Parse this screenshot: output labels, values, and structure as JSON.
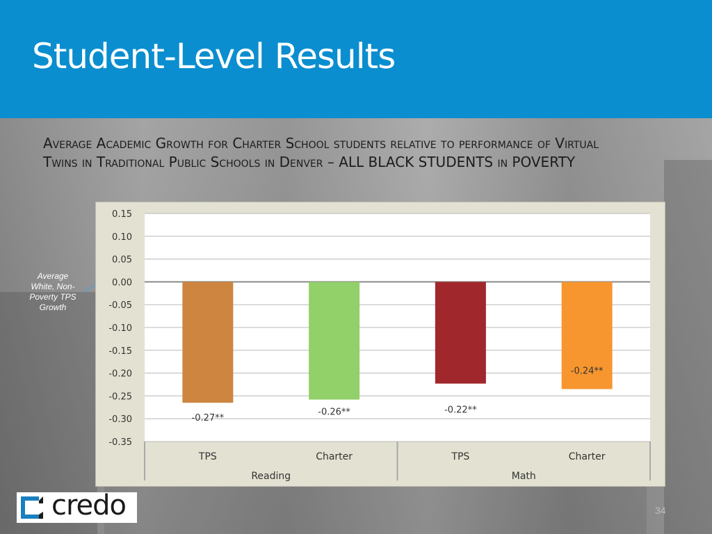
{
  "slide": {
    "title": "Student-Level Results",
    "subtitle": "Average Academic Growth for Charter School students relative to performance of Virtual Twins in Traditional Public Schools in Denver – ALL BLACK STUDENTS in POVERTY",
    "annotation": "Average White, Non-Poverty TPS Growth",
    "page_number": "34"
  },
  "logo": {
    "text": "credo"
  },
  "colors": {
    "header": "#0a8ecf",
    "plot_bg": "#ffffff",
    "frame_bg": "#e3e1d1",
    "annotation_arrow": "#4aa3d8"
  },
  "chart_data": {
    "type": "bar",
    "categories": [
      "TPS",
      "Charter",
      "TPS",
      "Charter"
    ],
    "groups": [
      {
        "label": "Reading",
        "categories": [
          "TPS",
          "Charter"
        ]
      },
      {
        "label": "Math",
        "categories": [
          "TPS",
          "Charter"
        ]
      }
    ],
    "values": [
      -0.265,
      -0.258,
      -0.223,
      -0.235
    ],
    "data_labels": [
      "-0.27**",
      "-0.26**",
      "-0.22**",
      "-0.24**"
    ],
    "colors": [
      "#cd853f",
      "#92d06a",
      "#a0282c",
      "#f7962f"
    ],
    "ylim": [
      -0.35,
      0.15
    ],
    "yticks": [
      "0.15",
      "0.10",
      "0.05",
      "0.00",
      "-0.05",
      "-0.10",
      "-0.15",
      "-0.20",
      "-0.25",
      "-0.30",
      "-0.35"
    ],
    "grid": true
  }
}
